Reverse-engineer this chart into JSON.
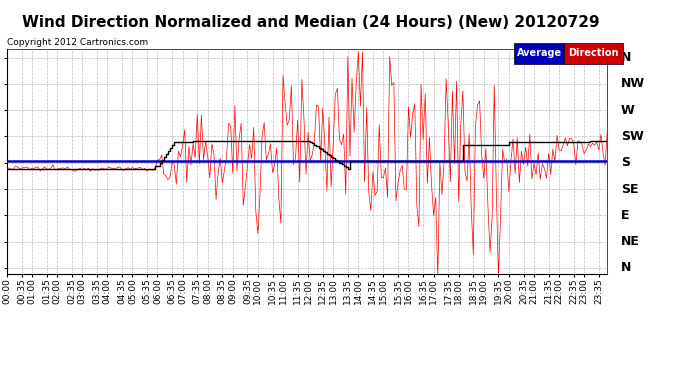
{
  "title": "Wind Direction Normalized and Median (24 Hours) (New) 20120729",
  "copyright": "Copyright 2012 Cartronics.com",
  "legend_avg_bg": "#0000bb",
  "legend_dir_bg": "#cc0000",
  "legend_avg_text": "Average",
  "legend_dir_text": "Direction",
  "bg_color": "#ffffff",
  "plot_bg": "#ffffff",
  "grid_color": "#aaaaaa",
  "y_labels": [
    "N",
    "NW",
    "W",
    "SW",
    "S",
    "SE",
    "E",
    "NE",
    "N"
  ],
  "y_ticks": [
    360,
    315,
    270,
    225,
    180,
    135,
    90,
    45,
    0
  ],
  "ylim": [
    -10,
    375
  ],
  "red_line_color": "#ff0000",
  "blue_line_color": "#0000cc",
  "black_step_color": "#000000",
  "title_fontsize": 11,
  "tick_fontsize": 6.5,
  "ytick_fontsize": 9,
  "n_points": 288,
  "blue_line_value": 183,
  "black_step_values": [
    170,
    170,
    170,
    170,
    170,
    170,
    170,
    170,
    170,
    170,
    170,
    170,
    170,
    170,
    170,
    170,
    170,
    170,
    170,
    170,
    170,
    170,
    170,
    170,
    170,
    170,
    170,
    170,
    170,
    170,
    170,
    170,
    170,
    170,
    170,
    170,
    170,
    170,
    170,
    170,
    170,
    170,
    170,
    170,
    170,
    170,
    170,
    170,
    170,
    170,
    170,
    170,
    170,
    170,
    170,
    170,
    170,
    170,
    170,
    170,
    170,
    170,
    170,
    170,
    170,
    170,
    170,
    170,
    170,
    170,
    170,
    175,
    175,
    180,
    185,
    190,
    195,
    200,
    205,
    210,
    215,
    215,
    215,
    215,
    215,
    215,
    215,
    215,
    215,
    218,
    218,
    218,
    218,
    218,
    218,
    218,
    218,
    218,
    218,
    218,
    218,
    218,
    218,
    218,
    218,
    218,
    218,
    218,
    218,
    218,
    218,
    218,
    218,
    218,
    218,
    218,
    218,
    218,
    218,
    218,
    218,
    218,
    218,
    218,
    218,
    218,
    218,
    218,
    218,
    218,
    218,
    218,
    218,
    218,
    218,
    218,
    218,
    218,
    218,
    218,
    218,
    218,
    218,
    218,
    218,
    215,
    213,
    210,
    208,
    205,
    203,
    200,
    198,
    195,
    193,
    190,
    188,
    185,
    183,
    180,
    178,
    175,
    173,
    170,
    183,
    183,
    183,
    183,
    183,
    183,
    183,
    183,
    183,
    183,
    183,
    183,
    183,
    183,
    183,
    183,
    183,
    183,
    183,
    183,
    183,
    183,
    183,
    183,
    183,
    183,
    183,
    183,
    183,
    183,
    183,
    183,
    183,
    183,
    183,
    183,
    183,
    183,
    183,
    183,
    183,
    183,
    183,
    183,
    183,
    183,
    183,
    183,
    183,
    183,
    183,
    183,
    183,
    183,
    210,
    210,
    210,
    210,
    210,
    210,
    210,
    210,
    210,
    210,
    210,
    210,
    210,
    210,
    210,
    210,
    210,
    210,
    210,
    210,
    210,
    210,
    215,
    215,
    215,
    215,
    215,
    215,
    215,
    215,
    215,
    215,
    215,
    215,
    215,
    215,
    215,
    215,
    215,
    215,
    215,
    215,
    215,
    215,
    215,
    215,
    215,
    215,
    215,
    215,
    215,
    215,
    215,
    215,
    215,
    215,
    215,
    215,
    215,
    215,
    215,
    218,
    218,
    218,
    218,
    218,
    218,
    218,
    218,
    218
  ]
}
